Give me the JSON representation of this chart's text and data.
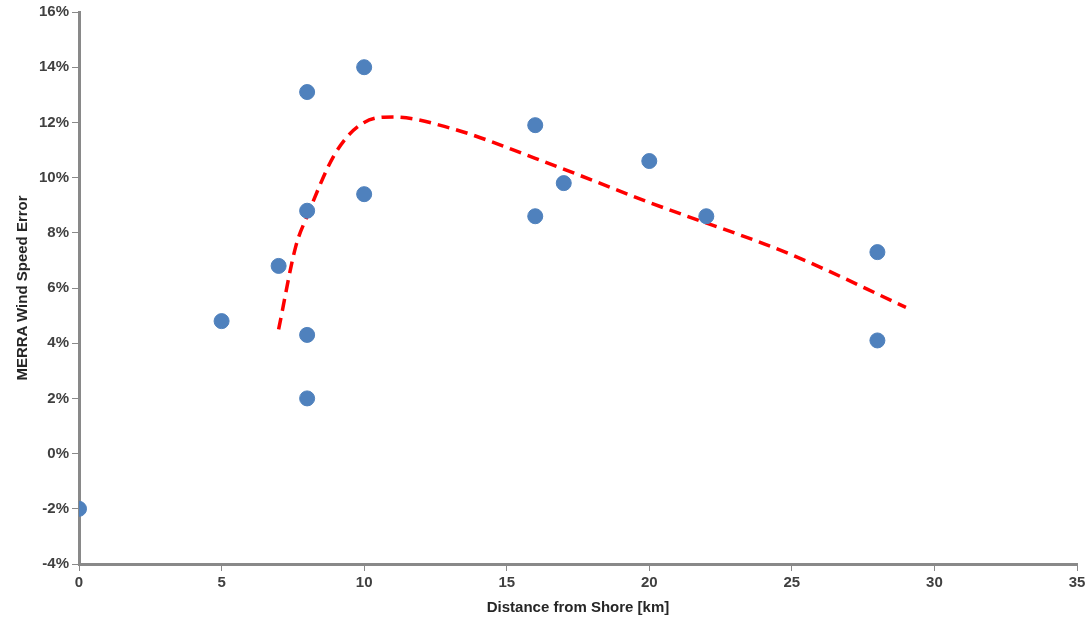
{
  "chart_data": {
    "type": "scatter",
    "xlabel": "Distance from Shore [km]",
    "ylabel": "MERRA Wind Speed Error",
    "xlim": [
      0,
      35
    ],
    "xticks": [
      0,
      5,
      10,
      15,
      20,
      25,
      30,
      35
    ],
    "ylim": [
      -4,
      16
    ],
    "yticks": [
      {
        "value": -4,
        "label": "-4%"
      },
      {
        "value": -2,
        "label": "-2%"
      },
      {
        "value": 0,
        "label": "0%"
      },
      {
        "value": 2,
        "label": "2%"
      },
      {
        "value": 4,
        "label": "4%"
      },
      {
        "value": 6,
        "label": "6%"
      },
      {
        "value": 8,
        "label": "8%"
      },
      {
        "value": 10,
        "label": "10%"
      },
      {
        "value": 12,
        "label": "12%"
      },
      {
        "value": 14,
        "label": "14%"
      },
      {
        "value": 16,
        "label": "16%"
      }
    ],
    "grid": false,
    "legend": false,
    "marker": "circle",
    "series": [
      {
        "color": "#4f81bd",
        "x": [
          0,
          5,
          7,
          8,
          8,
          8,
          8,
          10,
          10,
          16,
          16,
          17,
          20,
          22,
          28,
          28
        ],
        "values": [
          -2,
          4.8,
          6.8,
          13.1,
          8.8,
          4.3,
          2.0,
          14.0,
          9.4,
          11.9,
          8.6,
          9.8,
          10.6,
          8.6,
          7.3,
          4.1
        ]
      },
      {
        "type": "line",
        "color": "#ff0000",
        "line_style": "dashed",
        "marker": "none",
        "x": [
          7,
          7.6,
          8,
          9,
          10,
          11,
          13,
          16,
          20,
          25,
          29
        ],
        "values": [
          4.5,
          7.5,
          8.6,
          10.9,
          12.0,
          12.2,
          11.8,
          10.7,
          9.1,
          7.2,
          5.3
        ]
      }
    ]
  }
}
